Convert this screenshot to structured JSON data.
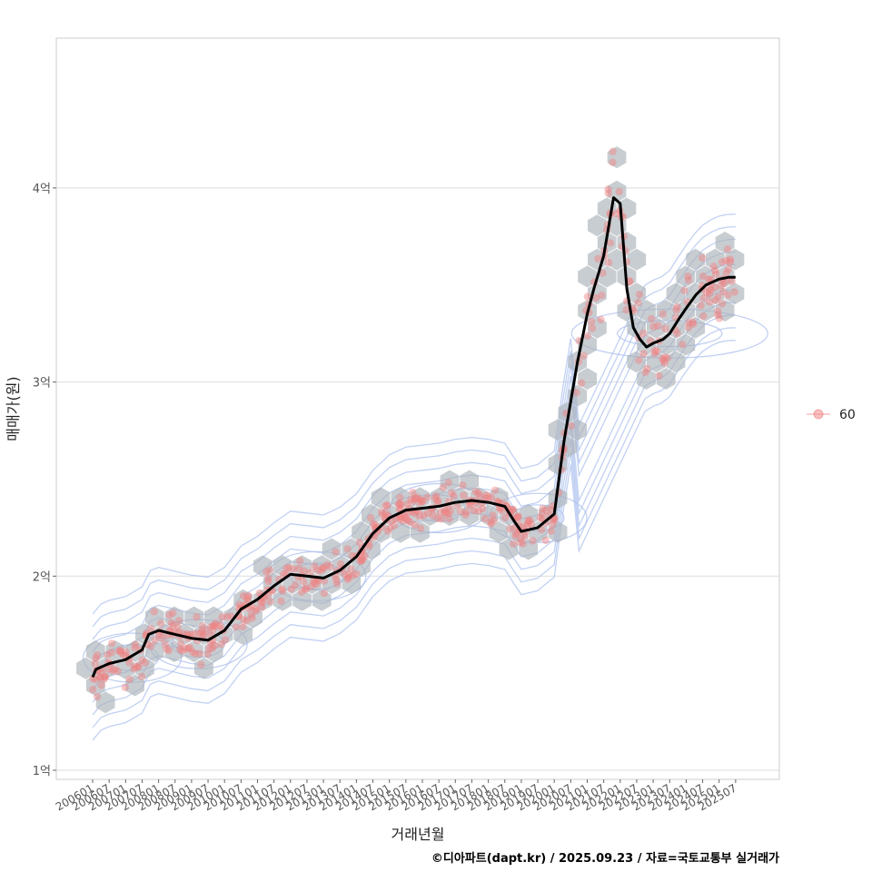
{
  "chart_data": {
    "type": "scatter",
    "title": "",
    "xlabel": "거래년월",
    "ylabel": "매매가(원)",
    "ylim": [
      0.95,
      4.65
    ],
    "xlim": [
      2005.3,
      2026.4
    ],
    "y_ticks": [
      {
        "value": 1,
        "label": "1억"
      },
      {
        "value": 2,
        "label": "2억"
      },
      {
        "value": 3,
        "label": "3억"
      },
      {
        "value": 4,
        "label": "4억"
      }
    ],
    "x_ticks": [
      "200601",
      "200607",
      "200701",
      "200707",
      "200801",
      "200807",
      "200901",
      "200907",
      "201001",
      "201007",
      "201101",
      "201107",
      "201201",
      "201207",
      "201301",
      "201307",
      "201401",
      "201407",
      "201501",
      "201507",
      "201601",
      "201607",
      "201701",
      "201707",
      "201801",
      "201807",
      "201901",
      "201907",
      "202001",
      "202007",
      "202101",
      "202107",
      "202201",
      "202207",
      "202301",
      "202307",
      "202401",
      "202407",
      "202501",
      "202507"
    ],
    "legend": {
      "label": "60",
      "position": "right"
    },
    "series": [
      {
        "name": "trend",
        "x": [
          2006.0,
          2006.1,
          2006.5,
          2007.0,
          2007.5,
          2007.7,
          2008.0,
          2008.5,
          2009.0,
          2009.5,
          2010.0,
          2010.5,
          2011.0,
          2011.5,
          2012.0,
          2012.5,
          2013.0,
          2013.5,
          2014.0,
          2014.5,
          2015.0,
          2015.5,
          2016.0,
          2016.5,
          2017.0,
          2017.5,
          2018.0,
          2018.5,
          2018.8,
          2019.0,
          2019.5,
          2020.0,
          2020.3,
          2020.7,
          2021.0,
          2021.2,
          2021.5,
          2021.8,
          2022.0,
          2022.2,
          2022.4,
          2022.6,
          2022.8,
          2023.0,
          2023.3,
          2023.5,
          2023.8,
          2024.0,
          2024.3,
          2024.6,
          2025.0,
          2025.3,
          2025.5
        ],
        "y": [
          1.48,
          1.52,
          1.55,
          1.57,
          1.62,
          1.7,
          1.72,
          1.7,
          1.68,
          1.67,
          1.72,
          1.83,
          1.88,
          1.95,
          2.01,
          2.0,
          1.99,
          2.03,
          2.1,
          2.22,
          2.3,
          2.34,
          2.35,
          2.36,
          2.38,
          2.39,
          2.38,
          2.36,
          2.28,
          2.23,
          2.25,
          2.32,
          2.7,
          3.1,
          3.35,
          3.48,
          3.65,
          3.95,
          3.92,
          3.48,
          3.28,
          3.22,
          3.18,
          3.2,
          3.22,
          3.25,
          3.33,
          3.38,
          3.45,
          3.5,
          3.53,
          3.54,
          3.54
        ]
      }
    ],
    "density_centers": [
      {
        "x": 2007.2,
        "y": 1.58
      },
      {
        "x": 2009.2,
        "y": 1.65
      },
      {
        "x": 2012.8,
        "y": 2.0
      },
      {
        "x": 2016.5,
        "y": 2.35
      },
      {
        "x": 2019.5,
        "y": 2.3
      },
      {
        "x": 2023.5,
        "y": 3.25
      }
    ],
    "colors": {
      "points": "#f08080",
      "hexbins": "#aab2b8",
      "trend": "#000000",
      "contours": "#aec1ef",
      "grid": "#dddddd",
      "panel_border": "#cccccc"
    },
    "caption": "©디아파트(dapt.kr) / 2025.09.23 / 자료=국토교통부 실거래가"
  }
}
